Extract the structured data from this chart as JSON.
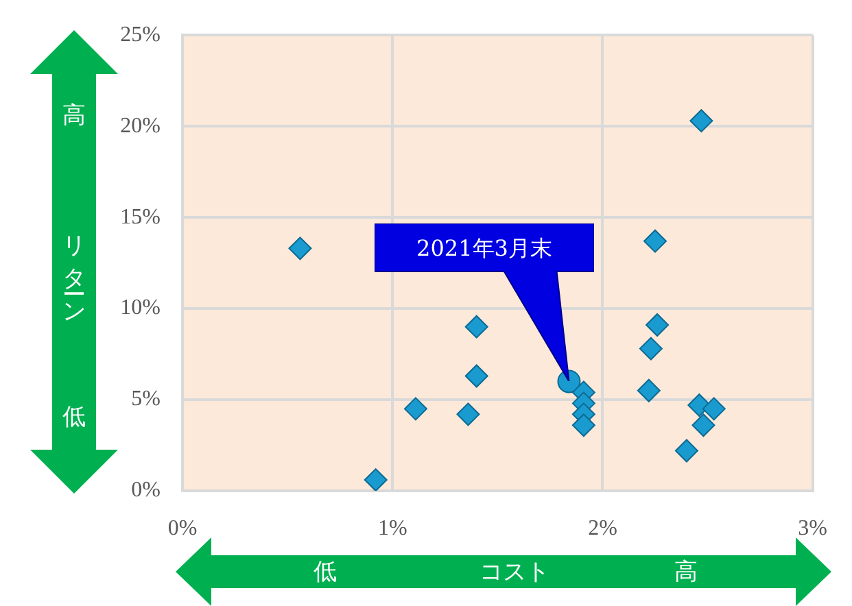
{
  "chart_data": {
    "type": "scatter",
    "xlabel": "コスト",
    "ylabel": "リターン",
    "xlim": [
      0,
      3
    ],
    "xticks": [
      {
        "value": 0,
        "label": "0%"
      },
      {
        "value": 1,
        "label": "1%"
      },
      {
        "value": 2,
        "label": "2%"
      },
      {
        "value": 3,
        "label": "3%"
      }
    ],
    "ylim": [
      0,
      25
    ],
    "yticks": [
      {
        "value": 0,
        "label": "0%"
      },
      {
        "value": 5,
        "label": "5%"
      },
      {
        "value": 10,
        "label": "10%"
      },
      {
        "value": 15,
        "label": "15%"
      },
      {
        "value": 20,
        "label": "20%"
      },
      {
        "value": 25,
        "label": "25%"
      }
    ],
    "grid": true,
    "marker": "diamond",
    "series": [
      {
        "color": "#1a9bd0",
        "x": [
          2.47,
          0.56,
          2.25,
          1.4,
          2.26,
          2.23,
          1.4,
          2.22,
          1.11,
          1.36,
          1.91,
          1.91,
          1.91,
          1.91,
          2.46,
          2.53,
          2.48,
          2.4,
          0.92
        ],
        "values": [
          20.3,
          13.3,
          13.7,
          9.0,
          9.1,
          7.8,
          6.3,
          5.5,
          4.5,
          4.2,
          5.4,
          4.8,
          4.2,
          3.6,
          4.7,
          4.5,
          3.6,
          2.2,
          0.6
        ]
      },
      {
        "color": "#1a9bd0",
        "marker": "circle",
        "x": [
          1.84
        ],
        "values": [
          6.0
        ]
      }
    ],
    "annotations": [
      "2021年3月末",
      "低",
      "高",
      "高",
      "低"
    ]
  }
}
